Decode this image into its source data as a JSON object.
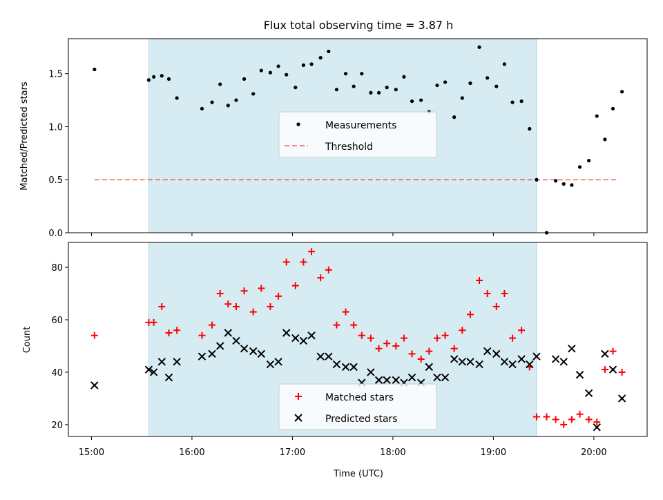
{
  "title": "Flux total observing time = 3.87 h",
  "colors": {
    "span": "#add8e6",
    "measurement": "#000000",
    "threshold": "#ff0000",
    "matched": "#ff0000",
    "predicted": "#000000"
  },
  "chart_data": [
    {
      "type": "scatter",
      "ylabel": "Matched/Predicted stars",
      "ylim": [
        0,
        1.83
      ],
      "xlim": [
        14.77,
        20.53
      ],
      "yticks": [
        "0.0",
        "0.5",
        "1.0",
        "1.5"
      ],
      "ytick_values": [
        0,
        0.5,
        1.0,
        1.5
      ],
      "shaded_span": [
        15.57,
        19.43
      ],
      "legend": {
        "placement": "center",
        "entries": [
          "Measurements",
          "Threshold"
        ]
      },
      "threshold": {
        "name": "Threshold",
        "y": 0.5,
        "x": [
          15.03,
          20.23
        ],
        "style": "dashed"
      },
      "series": [
        {
          "name": "Measurements",
          "x": [
            15.03,
            15.57,
            15.62,
            15.7,
            15.77,
            15.85,
            16.1,
            16.2,
            16.28,
            16.36,
            16.44,
            16.52,
            16.61,
            16.69,
            16.78,
            16.86,
            16.94,
            17.03,
            17.11,
            17.19,
            17.28,
            17.36,
            17.44,
            17.53,
            17.61,
            17.69,
            17.78,
            17.86,
            17.94,
            18.03,
            18.11,
            18.19,
            18.28,
            18.36,
            18.44,
            18.52,
            18.61,
            18.69,
            18.77,
            18.86,
            18.94,
            19.03,
            19.11,
            19.19,
            19.28,
            19.36,
            19.43,
            19.53,
            19.62,
            19.7,
            19.78,
            19.86,
            19.95,
            20.03,
            20.11,
            20.19,
            20.28
          ],
          "y": [
            1.54,
            1.44,
            1.47,
            1.48,
            1.45,
            1.27,
            1.17,
            1.23,
            1.4,
            1.2,
            1.25,
            1.45,
            1.31,
            1.53,
            1.51,
            1.57,
            1.49,
            1.37,
            1.58,
            1.59,
            1.65,
            1.71,
            1.35,
            1.5,
            1.38,
            1.5,
            1.32,
            1.32,
            1.37,
            1.35,
            1.47,
            1.24,
            1.25,
            1.14,
            1.39,
            1.42,
            1.09,
            1.27,
            1.41,
            1.75,
            1.46,
            1.38,
            1.59,
            1.23,
            1.24,
            0.98,
            0.5,
            0.0,
            0.49,
            0.46,
            0.45,
            0.62,
            0.68,
            1.1,
            0.88,
            1.17,
            1.33
          ]
        }
      ]
    },
    {
      "type": "scatter",
      "xlabel": "Time (UTC)",
      "ylabel": "Count",
      "ylim": [
        15.5,
        89.5
      ],
      "xlim": [
        14.77,
        20.53
      ],
      "xticks": [
        "15:00",
        "16:00",
        "17:00",
        "18:00",
        "19:00",
        "20:00"
      ],
      "xtick_values": [
        15,
        16,
        17,
        18,
        19,
        20
      ],
      "yticks": [
        "20",
        "40",
        "60",
        "80"
      ],
      "ytick_values": [
        20,
        40,
        60,
        80
      ],
      "shaded_span": [
        15.57,
        19.43
      ],
      "legend": {
        "placement": "lower center",
        "entries": [
          "Matched stars",
          "Predicted stars"
        ]
      },
      "series": [
        {
          "name": "Matched stars",
          "marker": "+",
          "x": [
            15.03,
            15.57,
            15.62,
            15.7,
            15.77,
            15.85,
            16.1,
            16.2,
            16.28,
            16.36,
            16.44,
            16.52,
            16.61,
            16.69,
            16.78,
            16.86,
            16.94,
            17.03,
            17.11,
            17.19,
            17.28,
            17.36,
            17.44,
            17.53,
            17.61,
            17.69,
            17.78,
            17.86,
            17.94,
            18.03,
            18.11,
            18.19,
            18.28,
            18.36,
            18.44,
            18.52,
            18.61,
            18.69,
            18.77,
            18.86,
            18.94,
            19.03,
            19.11,
            19.19,
            19.28,
            19.36,
            19.43,
            19.53,
            19.62,
            19.7,
            19.78,
            19.86,
            19.95,
            20.03,
            20.11,
            20.19,
            20.28
          ],
          "y": [
            54,
            59,
            59,
            65,
            55,
            56,
            54,
            58,
            70,
            66,
            65,
            71,
            63,
            72,
            65,
            69,
            82,
            73,
            82,
            86,
            76,
            79,
            58,
            63,
            58,
            54,
            53,
            49,
            51,
            50,
            53,
            47,
            45,
            48,
            53,
            54,
            49,
            56,
            62,
            75,
            70,
            65,
            70,
            53,
            56,
            42,
            23,
            23,
            22,
            20,
            22,
            24,
            22,
            21,
            41,
            48,
            40
          ]
        },
        {
          "name": "Predicted stars",
          "marker": "x",
          "x": [
            15.03,
            15.57,
            15.62,
            15.7,
            15.77,
            15.85,
            16.1,
            16.2,
            16.28,
            16.36,
            16.44,
            16.52,
            16.61,
            16.69,
            16.78,
            16.86,
            16.94,
            17.03,
            17.11,
            17.19,
            17.28,
            17.36,
            17.44,
            17.53,
            17.61,
            17.69,
            17.78,
            17.86,
            17.94,
            18.03,
            18.11,
            18.19,
            18.28,
            18.36,
            18.44,
            18.52,
            18.61,
            18.69,
            18.77,
            18.86,
            18.94,
            19.03,
            19.11,
            19.19,
            19.28,
            19.36,
            19.43,
            19.62,
            19.7,
            19.78,
            19.86,
            19.95,
            20.03,
            20.11,
            20.19,
            20.28
          ],
          "y": [
            35,
            41,
            40,
            44,
            38,
            44,
            46,
            47,
            50,
            55,
            52,
            49,
            48,
            47,
            43,
            44,
            55,
            53,
            52,
            54,
            46,
            46,
            43,
            42,
            42,
            36,
            40,
            37,
            37,
            37,
            36,
            38,
            36,
            42,
            38,
            38,
            45,
            44,
            44,
            43,
            48,
            47,
            44,
            43,
            45,
            43,
            46,
            45,
            44,
            49,
            39,
            32,
            19,
            47,
            41,
            30
          ]
        }
      ]
    }
  ]
}
